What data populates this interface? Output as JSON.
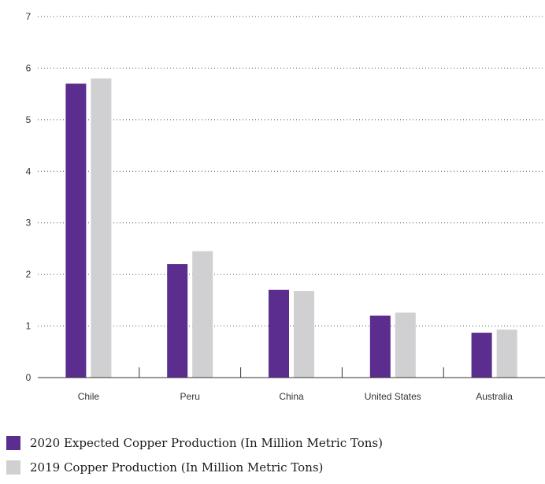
{
  "chart_data": {
    "type": "bar",
    "title": "",
    "xlabel": "",
    "ylabel": "",
    "categories": [
      "Chile",
      "Peru",
      "China",
      "United States",
      "Australia"
    ],
    "series": [
      {
        "name": "2020 Expected Copper Production (In Million Metric Tons)",
        "values": [
          5.7,
          2.2,
          1.7,
          1.2,
          0.87
        ],
        "color": "#5b2d8e"
      },
      {
        "name": "2019 Copper Production (In Million Metric Tons)",
        "values": [
          5.8,
          2.45,
          1.68,
          1.26,
          0.93
        ],
        "color": "#d0d0d2"
      }
    ],
    "ylim": [
      0,
      7
    ],
    "yticks": [
      "0",
      "1",
      "2",
      "3",
      "4",
      "5",
      "6",
      "7"
    ],
    "grid": true,
    "legend_position": "bottom-left"
  }
}
